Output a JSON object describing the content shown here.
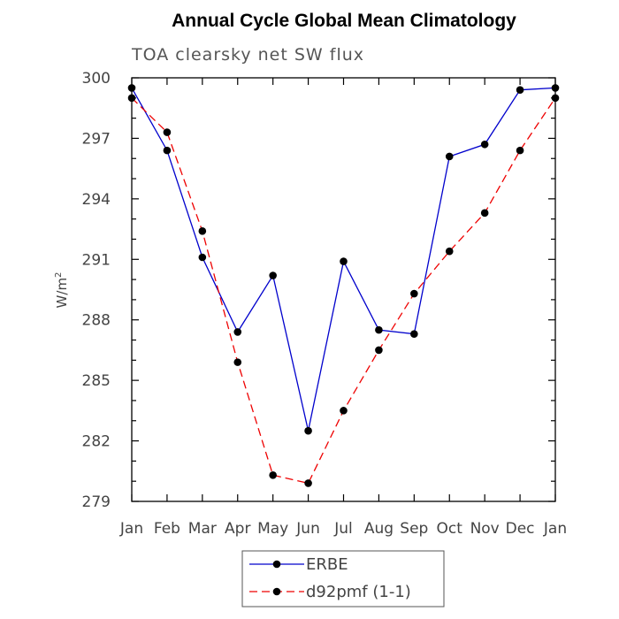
{
  "chart_data": {
    "type": "line",
    "title": "Annual Cycle Global Mean Climatology",
    "subtitle": "TOA clearsky net SW flux",
    "ylabel_base": "W/m",
    "ylabel_sup": "2",
    "categories": [
      "Jan",
      "Feb",
      "Mar",
      "Apr",
      "May",
      "Jun",
      "Jul",
      "Aug",
      "Sep",
      "Oct",
      "Nov",
      "Dec",
      "Jan"
    ],
    "ylim": [
      279,
      300
    ],
    "yticks": [
      "279",
      "282",
      "285",
      "288",
      "291",
      "294",
      "297",
      "300"
    ],
    "grid": false,
    "legend_position": "bottom",
    "series": [
      {
        "name": "ERBE",
        "color": "#0000cc",
        "style": "solid",
        "values": [
          299.5,
          296.4,
          291.1,
          287.4,
          290.2,
          282.5,
          290.9,
          287.5,
          287.3,
          296.1,
          296.7,
          299.4,
          299.5
        ]
      },
      {
        "name": "d92pmf (1-1)",
        "color": "#ee0000",
        "style": "dashed",
        "values": [
          299.0,
          297.3,
          292.4,
          285.9,
          280.3,
          279.9,
          283.5,
          286.5,
          289.3,
          291.4,
          293.3,
          296.4,
          299.0
        ]
      }
    ]
  }
}
